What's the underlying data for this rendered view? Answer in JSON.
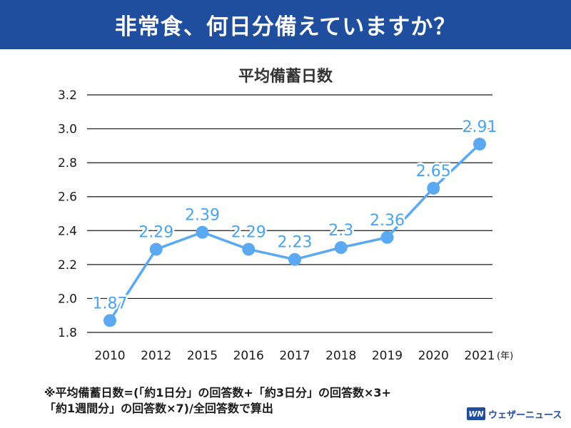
{
  "header": {
    "title": "非常食、何日分備えていますか？"
  },
  "chart_data": {
    "type": "line",
    "title": "平均備蓄日数",
    "xlabel": "",
    "ylabel": "",
    "categories": [
      "2010",
      "2012",
      "2015",
      "2016",
      "2017",
      "2018",
      "2019",
      "2020",
      "2021"
    ],
    "x_unit_label": "(年)",
    "values": [
      1.87,
      2.29,
      2.39,
      2.29,
      2.23,
      2.3,
      2.36,
      2.65,
      2.91
    ],
    "data_labels": [
      "1.87",
      "2.29",
      "2.39",
      "2.29",
      "2.23",
      "2.3",
      "2.36",
      "2.65",
      "2.91"
    ],
    "ylim": [
      1.8,
      3.2
    ],
    "yticks": [
      "1.8",
      "2.0",
      "2.2",
      "2.4",
      "2.6",
      "2.8",
      "3.0",
      "3.2"
    ],
    "grid": true,
    "line_color": "#5aa9f2",
    "label_color": "#4aa3f0"
  },
  "footnote": {
    "line1": "※平均備蓄日数=(「約1日分」の回答数+「約3日分」の回答数×3+",
    "line2": "「約1週間分」の回答数×7)/全回答数で算出"
  },
  "logo": {
    "mark": "WN",
    "text": "ウェザーニュース"
  },
  "colors": {
    "header_bg": "#1f4e9e",
    "text": "#1a1a1a"
  }
}
